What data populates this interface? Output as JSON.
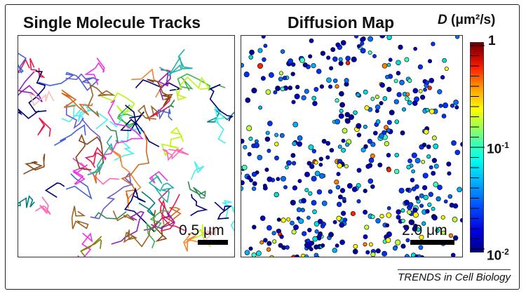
{
  "left_panel": {
    "title": "Single Molecule Tracks",
    "scale_label": "0.5 μm"
  },
  "right_panel": {
    "title": "Diffusion Map",
    "scale_label": "2.0 μm"
  },
  "colorbar": {
    "symbol": "D",
    "units": "(μm²/s)",
    "tick_top": "1",
    "tick_mid_base": "10",
    "tick_mid_exp": "-1",
    "tick_bottom_base": "10",
    "tick_bottom_exp": "-2",
    "colors": [
      "#00008b",
      "#0050ff",
      "#00ffee",
      "#ffff00",
      "#ff2000",
      "#6b0000"
    ]
  },
  "credit": "TRENDS in Cell Biology"
}
